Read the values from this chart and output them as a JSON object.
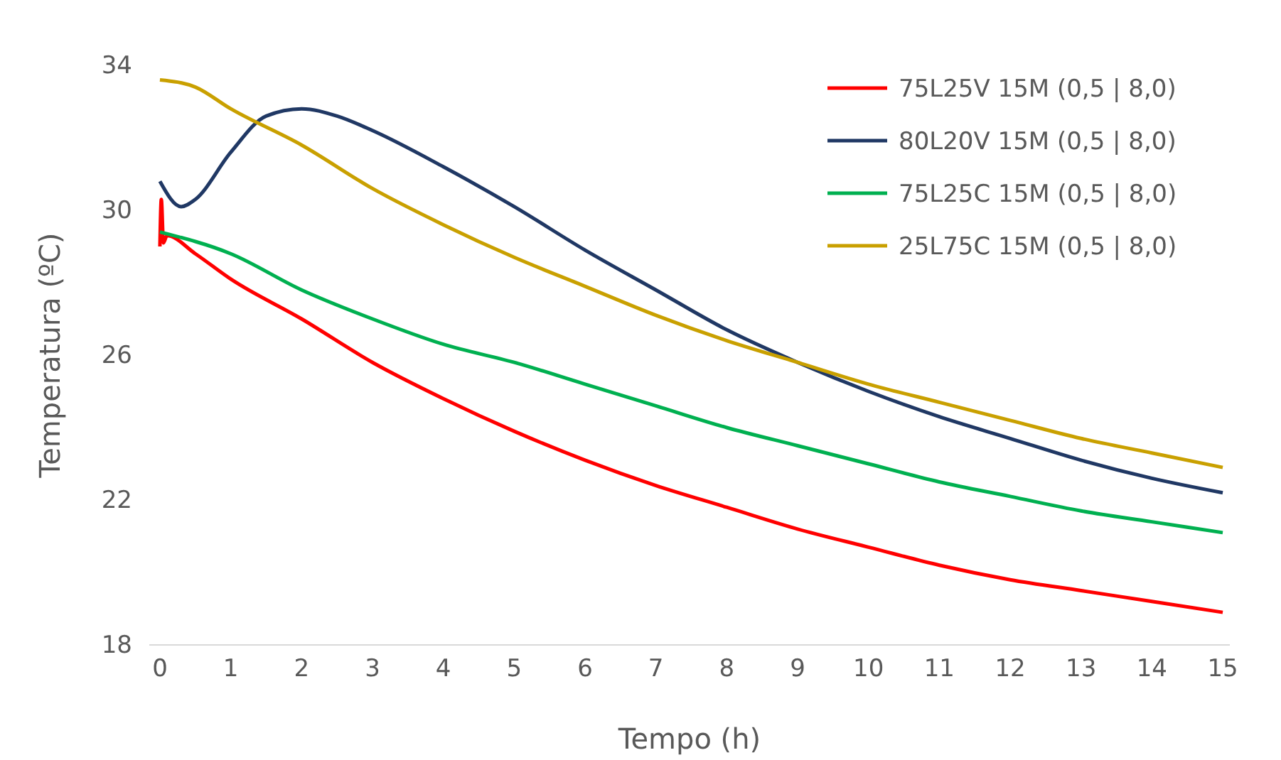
{
  "chart_data": {
    "type": "line",
    "xlabel": "Tempo (h)",
    "ylabel": "Temperatura (ºC)",
    "xlim": [
      -0.15,
      15.1
    ],
    "xticks": [
      0,
      1,
      2,
      3,
      4,
      5,
      6,
      7,
      8,
      9,
      10,
      11,
      12,
      13,
      14,
      15
    ],
    "ylim": [
      18,
      34
    ],
    "yticks": [
      18,
      22,
      26,
      30,
      34
    ],
    "grid": false,
    "legend": "top right",
    "marker": "none",
    "line_style": "solid",
    "series": [
      {
        "name": "75L25V 15M (0,5 | 8,0)",
        "color": "#ff0000",
        "x": [
          0,
          0.02,
          0.05,
          0.1,
          0.5,
          1,
          2,
          3,
          4,
          5,
          6,
          7,
          8,
          9,
          10,
          11,
          12,
          13,
          14,
          15
        ],
        "values": [
          29,
          30.3,
          29.1,
          29.3,
          28.8,
          28.1,
          27,
          25.8,
          24.8,
          23.9,
          23.1,
          22.4,
          21.8,
          21.2,
          20.7,
          20.2,
          19.8,
          19.5,
          19.2,
          18.9
        ]
      },
      {
        "name": "80L20V 15M (0,5 | 8,0)",
        "color": "#203864",
        "x": [
          0,
          0.3,
          0.5,
          1,
          1.5,
          2,
          2.5,
          3,
          4,
          5,
          6,
          7,
          8,
          9,
          10,
          11,
          12,
          13,
          14,
          15
        ],
        "values": [
          30.8,
          30.1,
          30.3,
          31.6,
          32.6,
          32.8,
          32.6,
          32.2,
          31.2,
          30.1,
          28.9,
          27.8,
          26.7,
          25.8,
          25,
          24.3,
          23.7,
          23.1,
          22.6,
          22.2
        ]
      },
      {
        "name": "75L25C 15M (0,5 | 8,0)",
        "color": "#00b050",
        "x": [
          0,
          1,
          2,
          3,
          4,
          5,
          6,
          7,
          8,
          9,
          10,
          11,
          12,
          13,
          14,
          15
        ],
        "values": [
          29.4,
          28.8,
          27.8,
          27,
          26.3,
          25.8,
          25.2,
          24.6,
          24,
          23.5,
          23,
          22.5,
          22.1,
          21.7,
          21.4,
          21.1
        ]
      },
      {
        "name": "25L75C 15M (0,5 | 8,0)",
        "color": "#c9a000",
        "x": [
          0,
          0.5,
          1,
          2,
          3,
          4,
          5,
          6,
          7,
          8,
          9,
          10,
          11,
          12,
          13,
          14,
          15
        ],
        "values": [
          33.6,
          33.4,
          32.8,
          31.8,
          30.6,
          29.6,
          28.7,
          27.9,
          27.1,
          26.4,
          25.8,
          25.2,
          24.7,
          24.2,
          23.7,
          23.3,
          22.9
        ]
      }
    ]
  }
}
